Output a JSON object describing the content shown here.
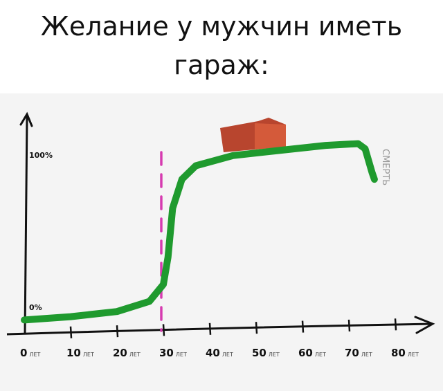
{
  "chart_data": {
    "type": "line",
    "title_lines": [
      "Желание у мужчин иметь",
      "гараж:"
    ],
    "x_ticks": [
      0,
      10,
      20,
      30,
      40,
      50,
      60,
      70,
      80
    ],
    "x_tick_numbers": [
      "0",
      "10",
      "20",
      "30",
      "40",
      "50",
      "60",
      "70",
      "80"
    ],
    "x_tick_unit": "ЛЕТ",
    "y_ticks": [
      {
        "value": 0,
        "label": "0%"
      },
      {
        "value": 100,
        "label": "100%"
      }
    ],
    "xlim": [
      0,
      85
    ],
    "ylim": [
      -5,
      120
    ],
    "grid": false,
    "series": [
      {
        "color": "#1f9a2e",
        "x": [
          0,
          10,
          20,
          27,
          30,
          31,
          32,
          34,
          37,
          45,
          55,
          65,
          72,
          73.5,
          75,
          75.5
        ],
        "y": [
          -1,
          1,
          4,
          10,
          20,
          36,
          65,
          82,
          90,
          96,
          99,
          102,
          103,
          100,
          86,
          82
        ]
      }
    ],
    "annotations": [
      {
        "type": "vline",
        "x": 30,
        "color": "#d63bb0"
      },
      {
        "type": "text",
        "text": "СМЕРТЬ",
        "x": 78,
        "y": 95
      },
      {
        "type": "image",
        "subject": "garage",
        "x": 45,
        "y": 100
      }
    ]
  }
}
